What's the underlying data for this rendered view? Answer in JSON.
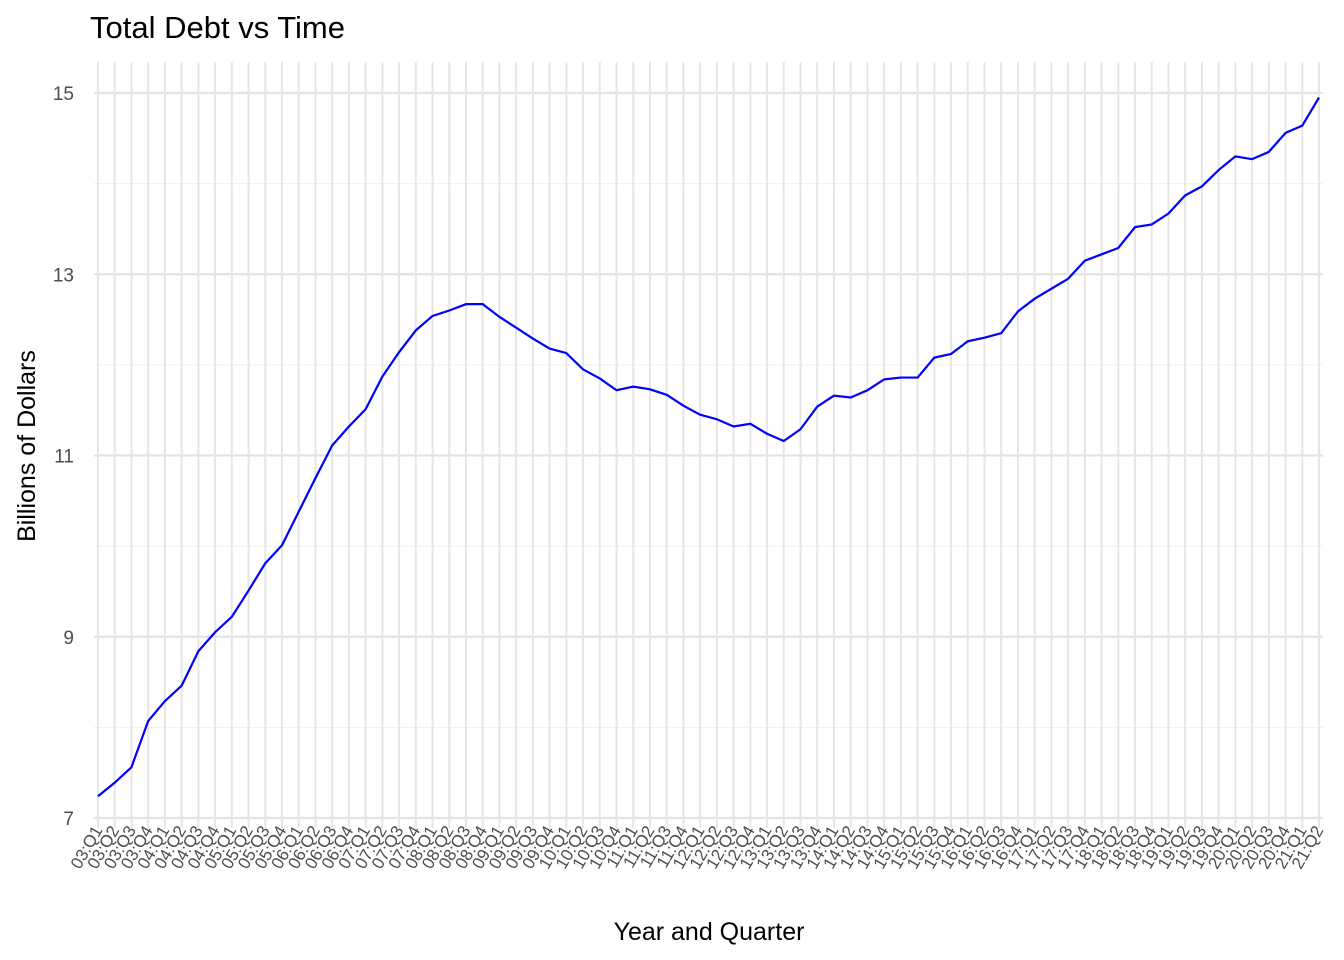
{
  "chart_data": {
    "type": "line",
    "title": "Total Debt vs Time",
    "xlabel": "Year and Quarter",
    "ylabel": "Billions of Dollars",
    "ylim": [
      7,
      15
    ],
    "y_ticks": [
      7,
      9,
      11,
      13,
      15
    ],
    "grid": true,
    "line_color": "#0000ff",
    "categories": [
      "03:Q1",
      "03:Q2",
      "03:Q3",
      "03:Q4",
      "04:Q1",
      "04:Q2",
      "04:Q3",
      "04:Q4",
      "05:Q1",
      "05:Q2",
      "05:Q3",
      "05:Q4",
      "06:Q1",
      "06:Q2",
      "06:Q3",
      "06:Q4",
      "07:Q1",
      "07:Q2",
      "07:Q3",
      "07:Q4",
      "08:Q1",
      "08:Q2",
      "08:Q3",
      "08:Q4",
      "09:Q1",
      "09:Q2",
      "09:Q3",
      "09:Q4",
      "10:Q1",
      "10:Q2",
      "10:Q3",
      "10:Q4",
      "11:Q1",
      "11:Q2",
      "11:Q3",
      "11:Q4",
      "12:Q1",
      "12:Q2",
      "12:Q3",
      "12:Q4",
      "13:Q1",
      "13:Q2",
      "13:Q3",
      "13:Q4",
      "14:Q1",
      "14:Q2",
      "14:Q3",
      "14:Q4",
      "15:Q1",
      "15:Q2",
      "15:Q3",
      "15:Q4",
      "16:Q1",
      "16:Q2",
      "16:Q3",
      "16:Q4",
      "17:Q1",
      "17:Q2",
      "17:Q3",
      "17:Q4",
      "18:Q1",
      "18:Q2",
      "18:Q3",
      "18:Q4",
      "19:Q1",
      "19:Q2",
      "19:Q3",
      "19:Q4",
      "20:Q1",
      "20:Q2",
      "20:Q3",
      "20:Q4",
      "21:Q1",
      "21:Q2"
    ],
    "values": [
      7.24,
      7.39,
      7.56,
      8.07,
      8.29,
      8.46,
      8.84,
      9.05,
      9.22,
      9.51,
      9.81,
      10.01,
      10.38,
      10.75,
      11.11,
      11.32,
      11.51,
      11.87,
      12.14,
      12.38,
      12.54,
      12.6,
      12.67,
      12.67,
      12.53,
      12.41,
      12.29,
      12.18,
      12.13,
      11.95,
      11.85,
      11.72,
      11.76,
      11.73,
      11.67,
      11.55,
      11.45,
      11.4,
      11.32,
      11.35,
      11.24,
      11.16,
      11.29,
      11.54,
      11.66,
      11.64,
      11.72,
      11.84,
      11.86,
      11.86,
      12.08,
      12.12,
      12.26,
      12.3,
      12.35,
      12.59,
      12.73,
      12.84,
      12.95,
      13.15,
      13.22,
      13.29,
      13.52,
      13.55,
      13.67,
      13.87,
      13.97,
      14.15,
      14.3,
      14.27,
      14.35,
      14.56,
      14.64,
      14.95
    ]
  }
}
